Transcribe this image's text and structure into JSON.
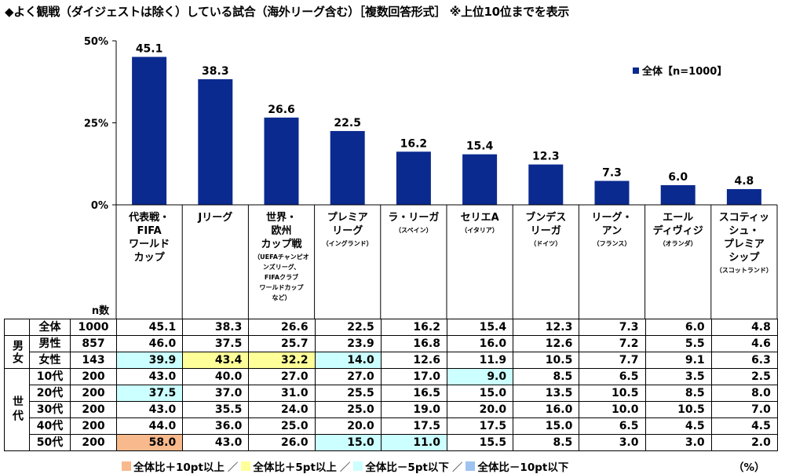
{
  "title": "◆よく観戦（ダイジェストは除く）している試合（海外リーグ含む）［複数回答形式］ ※上位10位までを表示",
  "chart_data": {
    "type": "bar",
    "categories": [
      {
        "main": [
          "代表戦・",
          "FIFA",
          "ワールド",
          "カップ"
        ],
        "sub": []
      },
      {
        "main": [
          "Jリーグ"
        ],
        "sub": []
      },
      {
        "main": [
          "世界・",
          "欧州",
          "カップ戦"
        ],
        "sub": [
          "（UEFAチャンピオ",
          "ンズリーグ、",
          "FIFAクラブ",
          "ワールドカップ",
          "など）"
        ]
      },
      {
        "main": [
          "プレミア",
          "リーグ"
        ],
        "sub": [
          "（イングランド）"
        ]
      },
      {
        "main": [
          "ラ・リーガ"
        ],
        "sub": [
          "（スペイン）"
        ]
      },
      {
        "main": [
          "セリエA"
        ],
        "sub": [
          "（イタリア）"
        ]
      },
      {
        "main": [
          "ブンデス",
          "リーガ"
        ],
        "sub": [
          "（ドイツ）"
        ]
      },
      {
        "main": [
          "リーグ・",
          "アン"
        ],
        "sub": [
          "（フランス）"
        ]
      },
      {
        "main": [
          "エール",
          "ディヴィジ"
        ],
        "sub": [
          "（オランダ）"
        ]
      },
      {
        "main": [
          "スコティッ",
          "シュ・",
          "プレミア",
          "シップ"
        ],
        "sub": [
          "（スコットランド）"
        ]
      }
    ],
    "series": [
      {
        "name": "全体【n=1000】",
        "values": [
          45.1,
          38.3,
          26.6,
          22.5,
          16.2,
          15.4,
          12.3,
          7.3,
          6.0,
          4.8
        ]
      }
    ],
    "ylim": [
      0,
      50
    ],
    "yticks": [
      "0%",
      "25%",
      "50%"
    ],
    "bar_color": "#0b2a8f",
    "legend": "全体【n=1000】",
    "n_label": "n数"
  },
  "table": {
    "rows": [
      {
        "group": "",
        "label": "全体",
        "n": "1000",
        "values": [
          "45.1",
          "38.3",
          "26.6",
          "22.5",
          "16.2",
          "15.4",
          "12.3",
          "7.3",
          "6.0",
          "4.8"
        ],
        "hl": [
          "",
          "",
          "",
          "",
          "",
          "",
          "",
          "",
          "",
          ""
        ]
      },
      {
        "group": "男女",
        "label": "男性",
        "n": "857",
        "values": [
          "46.0",
          "37.5",
          "25.7",
          "23.9",
          "16.8",
          "16.0",
          "12.6",
          "7.2",
          "5.5",
          "4.6"
        ],
        "hl": [
          "",
          "",
          "",
          "",
          "",
          "",
          "",
          "",
          "",
          ""
        ]
      },
      {
        "group": "",
        "label": "女性",
        "n": "143",
        "values": [
          "39.9",
          "43.4",
          "32.2",
          "14.0",
          "12.6",
          "11.9",
          "10.5",
          "7.7",
          "9.1",
          "6.3"
        ],
        "hl": [
          "cyan",
          "yellow",
          "yellow",
          "cyan",
          "",
          "",
          "",
          "",
          "",
          ""
        ]
      },
      {
        "group": "世代",
        "label": "10代",
        "n": "200",
        "values": [
          "43.0",
          "40.0",
          "27.0",
          "27.0",
          "17.0",
          "9.0",
          "8.5",
          "6.5",
          "3.5",
          "2.5"
        ],
        "hl": [
          "",
          "",
          "",
          "",
          "",
          "cyan",
          "",
          "",
          "",
          ""
        ]
      },
      {
        "group": "",
        "label": "20代",
        "n": "200",
        "values": [
          "37.5",
          "37.0",
          "31.0",
          "25.5",
          "16.5",
          "15.0",
          "13.5",
          "10.5",
          "8.5",
          "8.0"
        ],
        "hl": [
          "cyan",
          "",
          "",
          "",
          "",
          "",
          "",
          "",
          "",
          ""
        ]
      },
      {
        "group": "",
        "label": "30代",
        "n": "200",
        "values": [
          "43.0",
          "35.5",
          "24.0",
          "25.0",
          "19.0",
          "20.0",
          "16.0",
          "10.0",
          "10.5",
          "7.0"
        ],
        "hl": [
          "",
          "",
          "",
          "",
          "",
          "",
          "",
          "",
          "",
          ""
        ]
      },
      {
        "group": "",
        "label": "40代",
        "n": "200",
        "values": [
          "44.0",
          "36.0",
          "25.0",
          "20.0",
          "17.5",
          "17.5",
          "15.0",
          "6.5",
          "4.5",
          "4.5"
        ],
        "hl": [
          "",
          "",
          "",
          "",
          "",
          "",
          "",
          "",
          "",
          ""
        ]
      },
      {
        "group": "",
        "label": "50代",
        "n": "200",
        "values": [
          "58.0",
          "43.0",
          "26.0",
          "15.0",
          "11.0",
          "15.5",
          "8.5",
          "3.0",
          "3.0",
          "2.0"
        ],
        "hl": [
          "orange",
          "",
          "",
          "cyan",
          "cyan",
          "",
          "",
          "",
          "",
          ""
        ]
      }
    ]
  },
  "footer_legend": [
    {
      "label": "全体比＋10pt以上",
      "color": "#f8b98c"
    },
    {
      "label": "全体比＋5pt以上",
      "color": "#ffff99"
    },
    {
      "label": "全体比－5pt以下",
      "color": "#ccffff"
    },
    {
      "label": "全体比－10pt以下",
      "color": "#9fc3f0"
    }
  ],
  "footer_sep": "／",
  "unit": "（%）"
}
